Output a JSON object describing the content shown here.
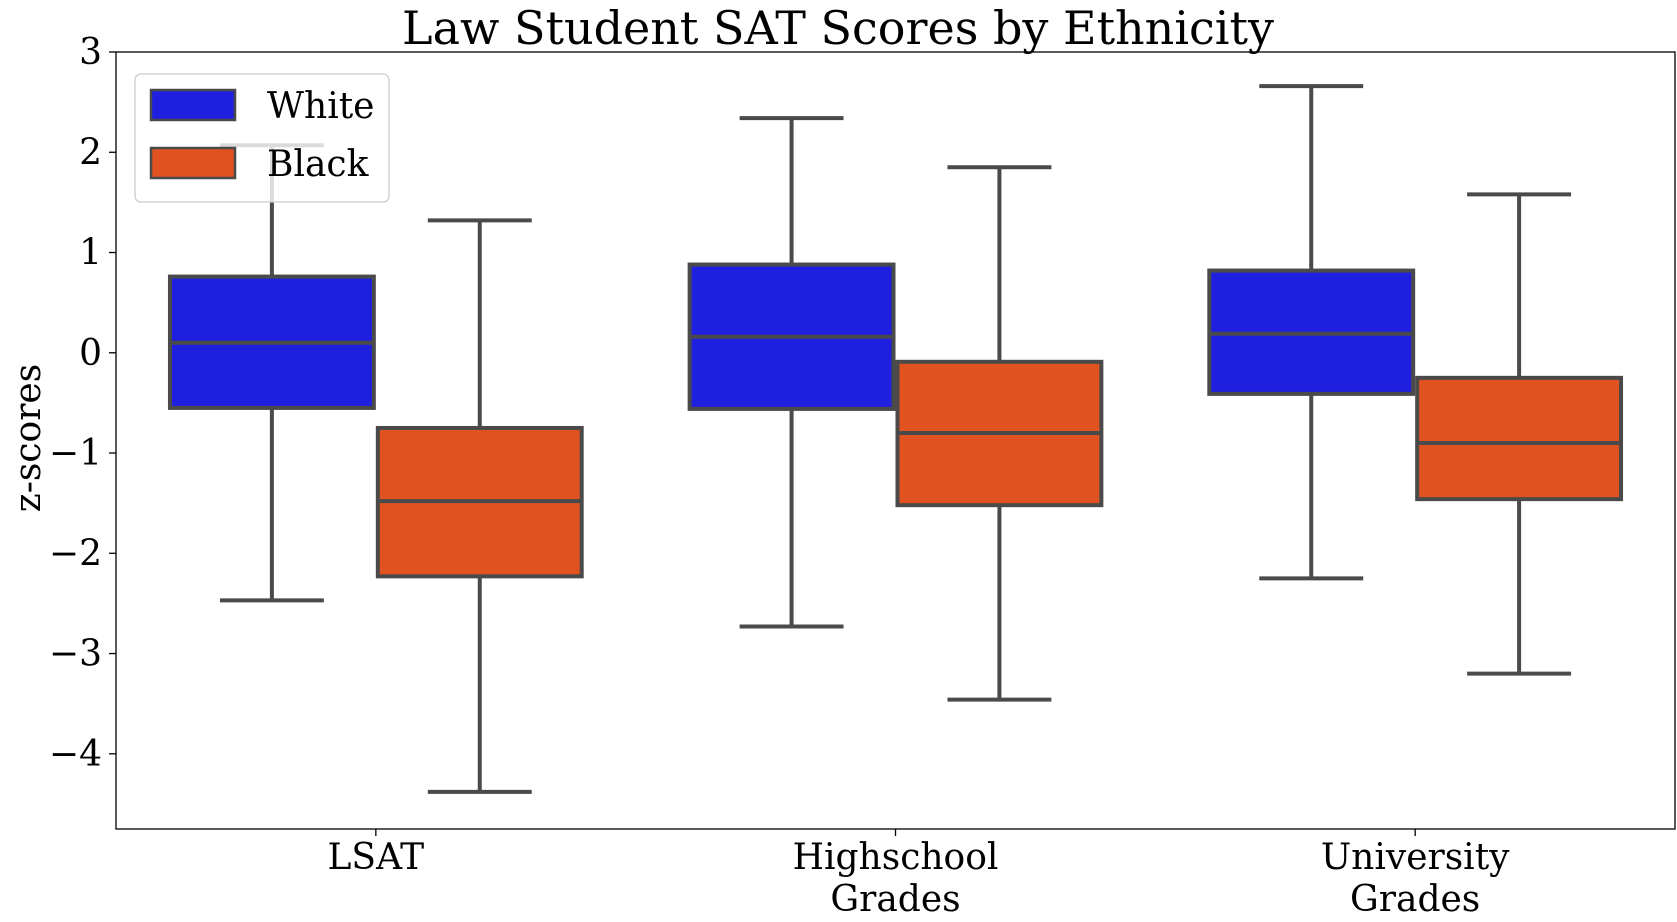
{
  "chart_data": {
    "type": "box",
    "title": "Law Student SAT Scores by Ethnicity",
    "xlabel": "",
    "ylabel": "z-scores",
    "ylim": [
      -4.75,
      3.0
    ],
    "yticks": [
      3,
      2,
      1,
      0,
      -1,
      -2,
      -3,
      -4
    ],
    "ytick_labels": [
      "3",
      "2",
      "1",
      "0",
      "−1",
      "−2",
      "−3",
      "−4"
    ],
    "categories": [
      [
        "LSAT"
      ],
      [
        "Highschool",
        "Grades"
      ],
      [
        "University",
        "Grades"
      ]
    ],
    "legend": {
      "position": "upper-left"
    },
    "series": [
      {
        "name": "White",
        "color": "#1f1fe0",
        "boxes": [
          {
            "whislo": -2.47,
            "q1": -0.55,
            "med": 0.1,
            "q3": 0.76,
            "whishi": 2.07
          },
          {
            "whislo": -2.73,
            "q1": -0.56,
            "med": 0.16,
            "q3": 0.88,
            "whishi": 2.34
          },
          {
            "whislo": -2.25,
            "q1": -0.41,
            "med": 0.19,
            "q3": 0.82,
            "whishi": 2.66
          }
        ]
      },
      {
        "name": "Black",
        "color": "#e05320",
        "boxes": [
          {
            "whislo": -4.38,
            "q1": -2.23,
            "med": -1.48,
            "q3": -0.75,
            "whishi": 1.32
          },
          {
            "whislo": -3.46,
            "q1": -1.52,
            "med": -0.8,
            "q3": -0.09,
            "whishi": 1.85
          },
          {
            "whislo": -3.2,
            "q1": -1.46,
            "med": -0.9,
            "q3": -0.25,
            "whishi": 1.58
          }
        ]
      }
    ],
    "edge_color": "#4a4a4a"
  }
}
